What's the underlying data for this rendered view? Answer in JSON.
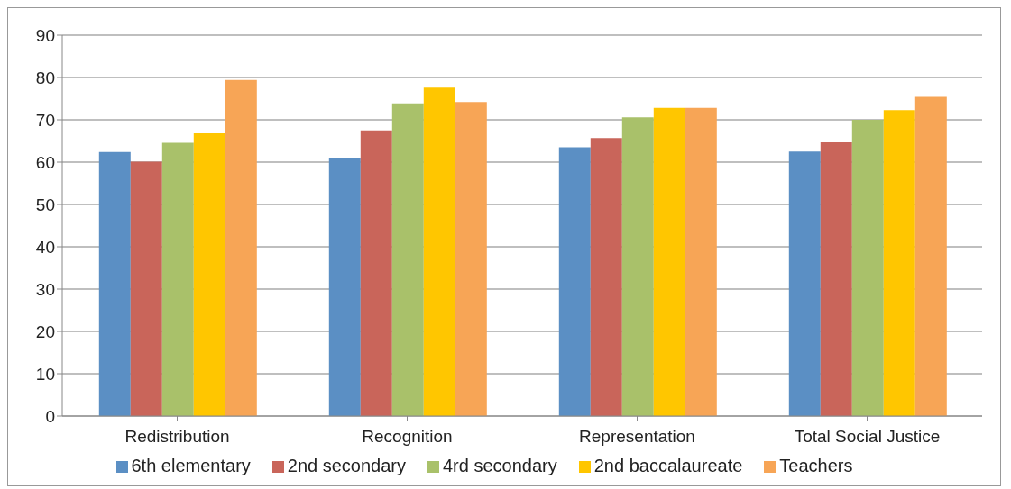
{
  "chart_data": {
    "type": "bar",
    "categories": [
      "Redistribution",
      "Recognition",
      "Representation",
      "Total Social Justice"
    ],
    "series": [
      {
        "name": "6th elementary",
        "color": "#5b8fc4",
        "values": [
          62.4,
          60.9,
          63.5,
          62.5
        ]
      },
      {
        "name": "2nd secondary",
        "color": "#c9655a",
        "values": [
          60.1,
          67.5,
          65.7,
          64.7
        ]
      },
      {
        "name": "4rd secondary",
        "color": "#a9c16a",
        "values": [
          64.6,
          73.9,
          70.6,
          70.0
        ]
      },
      {
        "name": "2nd baccalaureate",
        "color": "#ffc600",
        "values": [
          66.8,
          77.6,
          72.8,
          72.3
        ]
      },
      {
        "name": "Teachers",
        "color": "#f7a556",
        "values": [
          79.4,
          74.2,
          72.8,
          75.4
        ]
      }
    ],
    "ylim": [
      0,
      90
    ],
    "yticks": [
      0,
      10,
      20,
      30,
      40,
      50,
      60,
      70,
      80,
      90
    ],
    "grid": "y",
    "legend": "bottom"
  }
}
